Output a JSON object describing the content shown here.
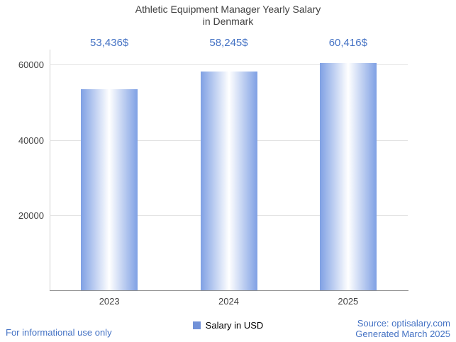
{
  "title": {
    "line1": "Athletic Equipment Manager Yearly Salary",
    "line2": "in Denmark"
  },
  "chart_data": {
    "type": "bar",
    "title": "Athletic Equipment Manager Yearly Salary in Denmark",
    "categories": [
      "2023",
      "2024",
      "2025"
    ],
    "values": [
      53436,
      58245,
      60416
    ],
    "value_labels": [
      "53,436$",
      "58,245$",
      "60,416$"
    ],
    "xlabel": "",
    "ylabel": "",
    "y_ticks": [
      20000,
      40000,
      60000
    ],
    "ylim": [
      0,
      64000
    ],
    "grid": true,
    "legend": {
      "label": "Salary in USD",
      "position": "bottom"
    }
  },
  "footer": {
    "disclaimer": "For informational use only",
    "source": "Source: optisalary.com",
    "generated": "Generated March 2025"
  },
  "colors": {
    "accent": "#4472c4",
    "bar_edge": "#7fa0e4",
    "bar_center": "#ffffff",
    "legend_marker": "#7191d8",
    "grid": "#e3e3e3",
    "axis_bottom": "#8c8c8c",
    "axis_left": "#cfcfcf",
    "title_text": "#404040"
  }
}
